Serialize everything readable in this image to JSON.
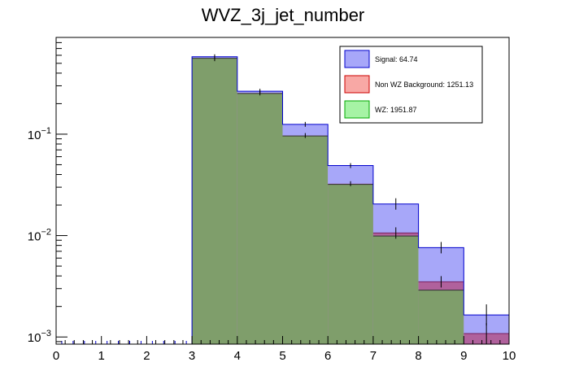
{
  "chart_data": {
    "type": "bar",
    "title": "WVZ_3j_jet_number",
    "xlabel": "",
    "ylabel": "",
    "x_range": [
      0,
      10
    ],
    "y_scale": "log",
    "y_range": [
      0.00085,
      0.9
    ],
    "bin_edges": [
      0,
      1,
      2,
      3,
      4,
      5,
      6,
      7,
      8,
      9,
      10
    ],
    "x_ticks": [
      "0",
      "1",
      "2",
      "3",
      "4",
      "5",
      "6",
      "7",
      "8",
      "9",
      "10"
    ],
    "y_ticks": [
      {
        "base": "10",
        "exp": "−1",
        "value": 0.1
      },
      {
        "base": "10",
        "exp": "−2",
        "value": 0.01
      },
      {
        "base": "10",
        "exp": "−3",
        "value": 0.001
      }
    ],
    "legend_position": "top-right",
    "series": [
      {
        "name": "Signal: 64.74",
        "fill": "#a7a7f9",
        "line": "#0000cc",
        "values": [
          0,
          0,
          0,
          0.58,
          0.265,
          0.125,
          0.049,
          0.0205,
          0.0076,
          0.00165
        ]
      },
      {
        "name": "Non WZ Background: 1251.13",
        "fill": "#f8a8a5",
        "line": "#cc0000",
        "values": [
          0,
          0,
          0,
          0.555,
          0.255,
          0.097,
          0.0325,
          0.0106,
          0.0035,
          0.00108
        ]
      },
      {
        "name": "WZ: 1951.87",
        "fill": "#a6f3a5",
        "line": "#00aa00",
        "values": [
          0,
          0,
          0,
          0.56,
          0.252,
          0.096,
          0.032,
          0.0099,
          0.0029,
          0
        ]
      }
    ],
    "colors": {
      "wz_overlap": "#7f9e6b",
      "nonwz_overlap": "#b0619c"
    }
  }
}
